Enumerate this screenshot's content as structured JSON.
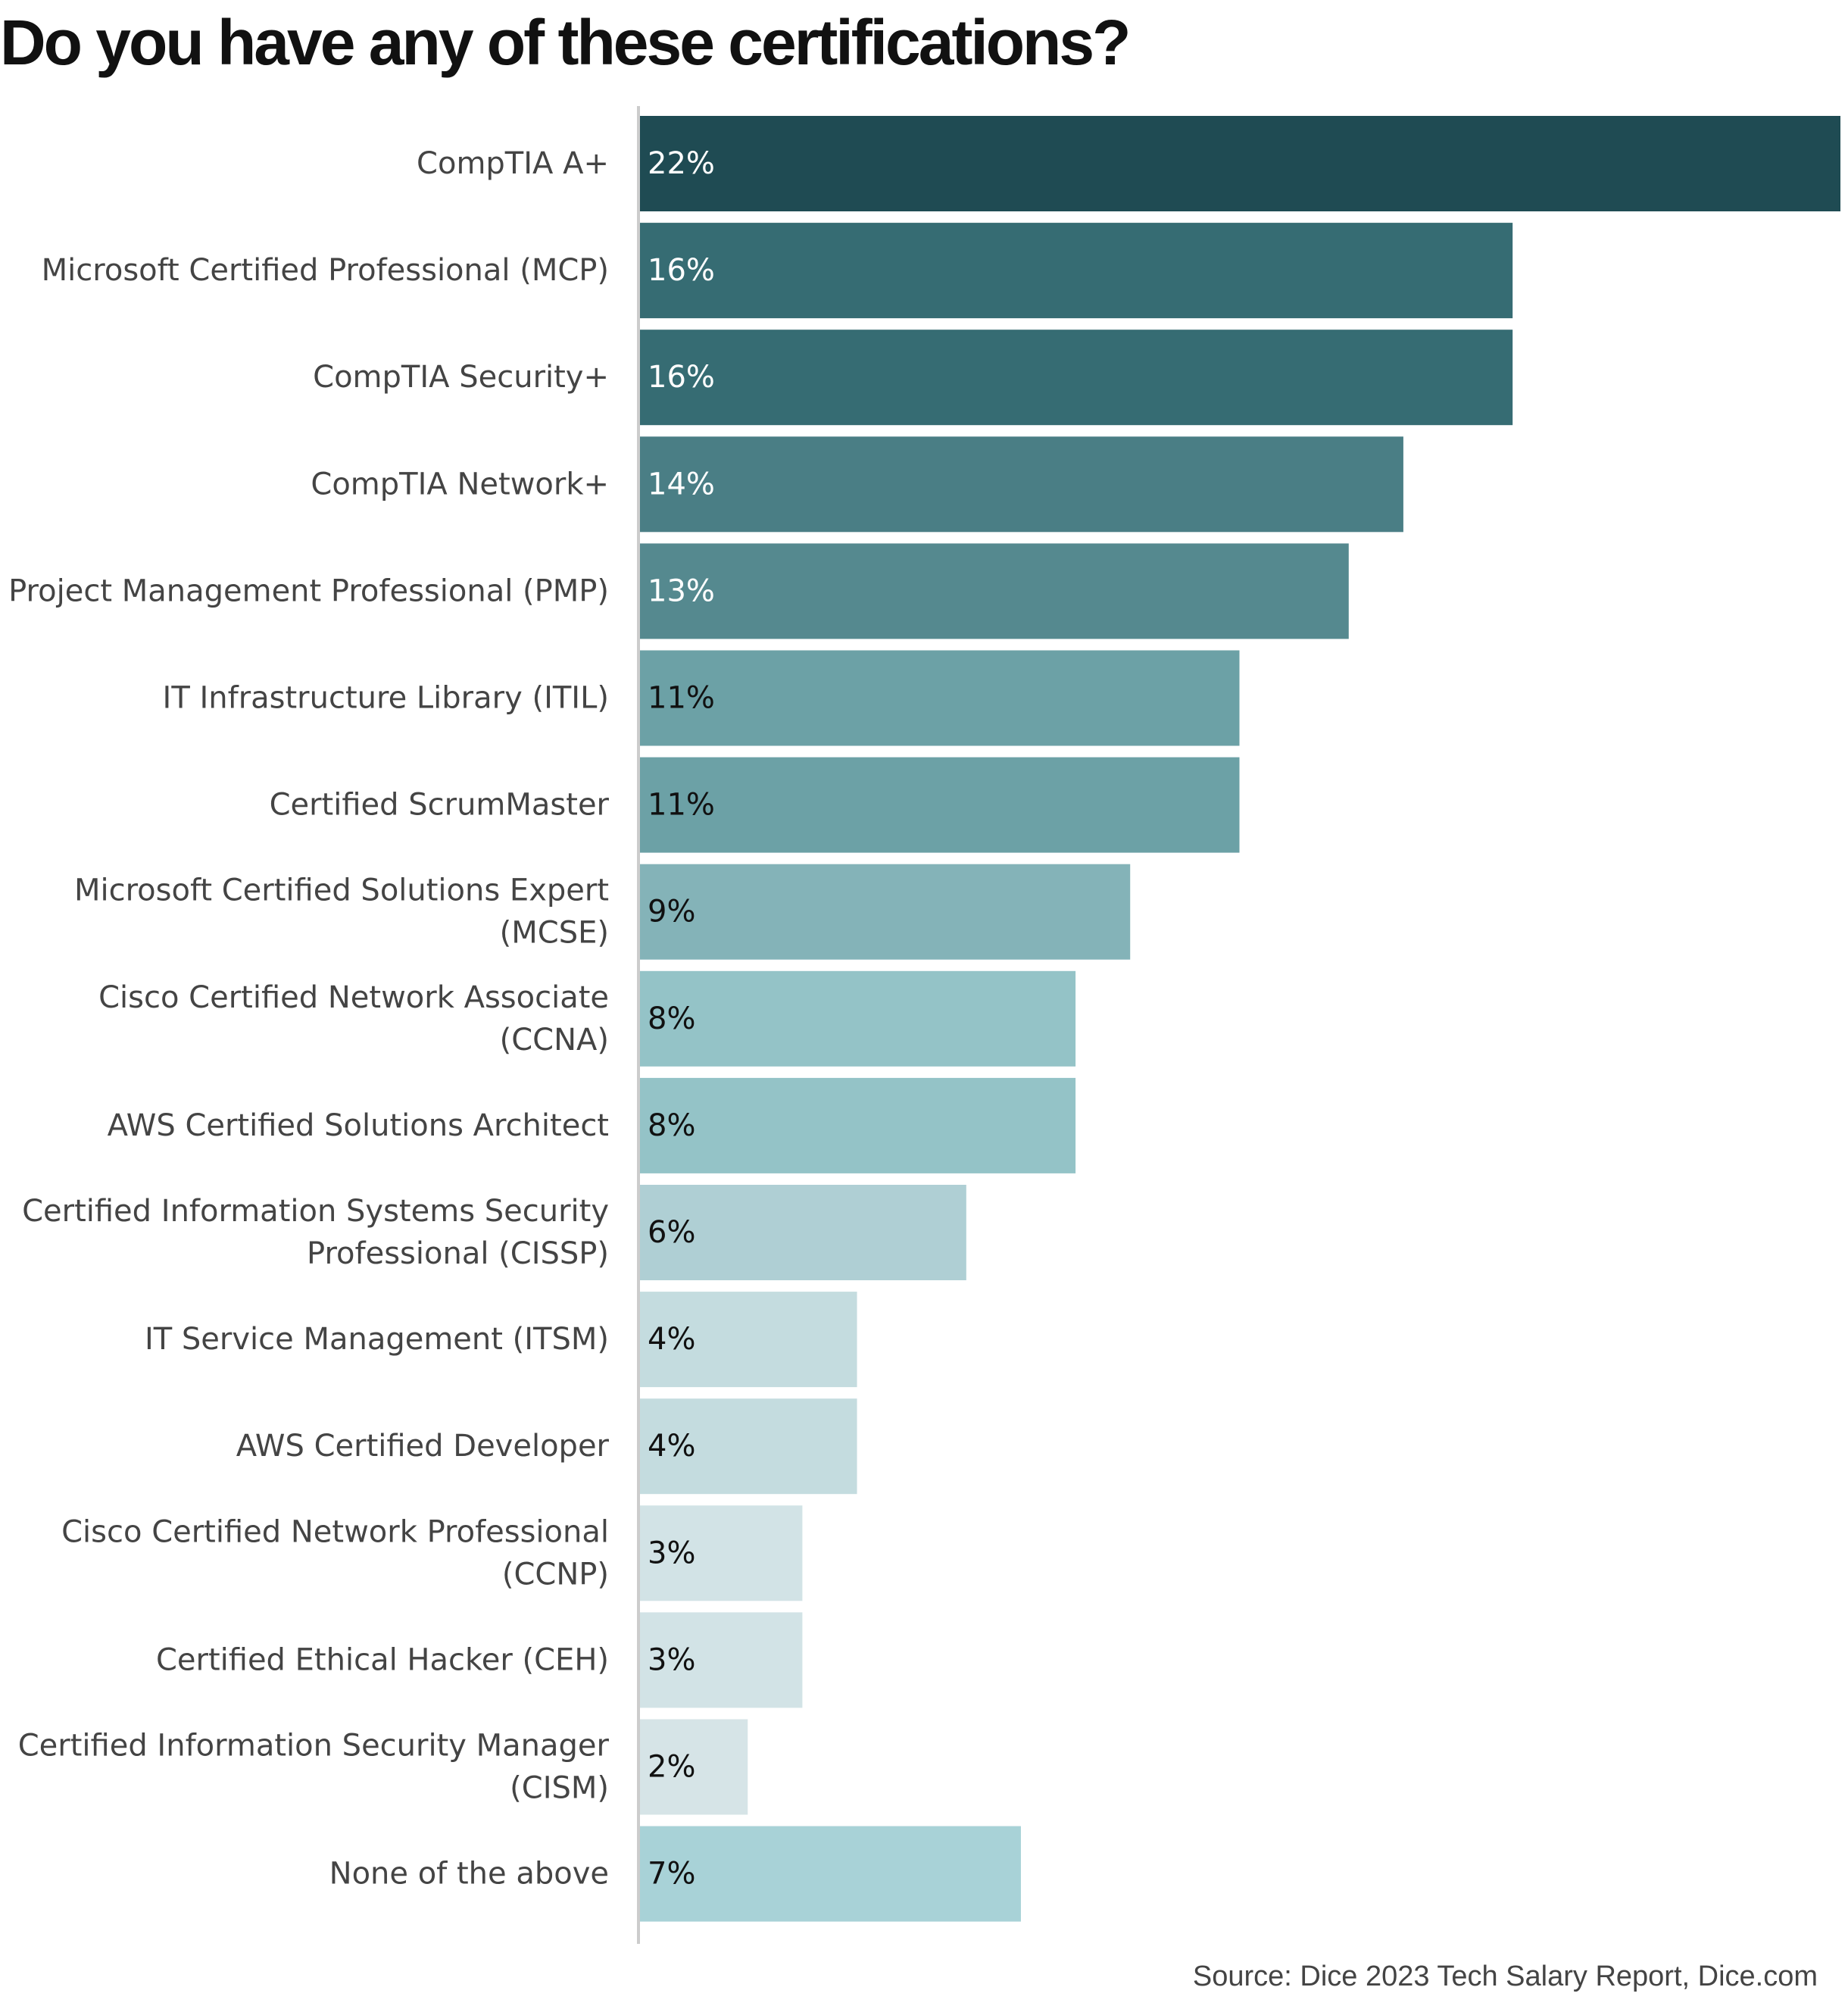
{
  "chart_data": {
    "type": "bar",
    "orientation": "horizontal",
    "title": "Do you have any of these certifications?",
    "source": "Source: Dice 2023 Tech Salary Report, Dice.com",
    "xlabel": "",
    "ylabel": "",
    "xlim": [
      0,
      22
    ],
    "grid": false,
    "legend": "none",
    "value_suffix": "%",
    "categories": [
      [
        "CompTIA A+"
      ],
      [
        "Microsoft Certified Professional (MCP)"
      ],
      [
        "CompTIA Security+"
      ],
      [
        "CompTIA Network+"
      ],
      [
        "Project Management Professional (PMP)"
      ],
      [
        "IT Infrastructure Library (ITIL)"
      ],
      [
        "Certified ScrumMaster"
      ],
      [
        "Microsoft Certified Solutions Expert",
        "(MCSE)"
      ],
      [
        "Cisco Certified Network Associate",
        "(CCNA)"
      ],
      [
        "AWS Certified Solutions Architect"
      ],
      [
        "Certified Information Systems Security",
        "Professional (CISSP)"
      ],
      [
        "IT Service Management (ITSM)"
      ],
      [
        "AWS Certified Developer"
      ],
      [
        "Cisco Certified Network Professional",
        "(CCNP)"
      ],
      [
        "Certified Ethical Hacker (CEH)"
      ],
      [
        "Certified Information Security Manager",
        "(CISM)"
      ],
      [
        "None of the above"
      ]
    ],
    "values": [
      22,
      16,
      16,
      14,
      13,
      11,
      11,
      9,
      8,
      8,
      6,
      4,
      4,
      3,
      3,
      2,
      7
    ],
    "colors": [
      "#1f4b53",
      "#366c73",
      "#366c73",
      "#4a7e85",
      "#55898f",
      "#6ca1a6",
      "#6ca1a6",
      "#84b3b8",
      "#94c3c7",
      "#94c3c7",
      "#afcfd4",
      "#c4dcdf",
      "#c4dcdf",
      "#d2e3e6",
      "#d2e3e6",
      "#d6e4e7",
      "#a8d2d7"
    ],
    "label_colors": [
      "#ffffff",
      "#ffffff",
      "#ffffff",
      "#ffffff",
      "#ffffff",
      "#111111",
      "#111111",
      "#111111",
      "#111111",
      "#111111",
      "#111111",
      "#111111",
      "#111111",
      "#111111",
      "#111111",
      "#111111",
      "#111111"
    ],
    "axis_color": "#cccccc",
    "category_label_color": "#444444"
  }
}
